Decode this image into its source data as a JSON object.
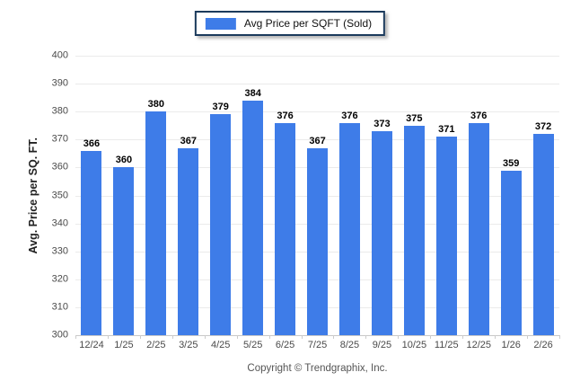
{
  "legend": {
    "label": "Avg Price per SQFT (Sold)",
    "swatch_color": "#3e7ce8"
  },
  "chart_data": {
    "type": "bar",
    "title": "",
    "series_name": "Avg Price per SQFT (Sold)",
    "categories": [
      "12/24",
      "1/25",
      "2/25",
      "3/25",
      "4/25",
      "5/25",
      "6/25",
      "7/25",
      "8/25",
      "9/25",
      "10/25",
      "11/25",
      "12/25",
      "1/26",
      "2/26"
    ],
    "values": [
      366,
      360,
      380,
      367,
      379,
      384,
      376,
      367,
      376,
      373,
      375,
      371,
      376,
      359,
      372
    ],
    "xlabel": "",
    "ylabel": "Avg. Price per SQ. FT.",
    "ylim": [
      300,
      400
    ],
    "ytick_step": 10,
    "yticks": [
      300,
      310,
      320,
      330,
      340,
      350,
      360,
      370,
      380,
      390,
      400
    ],
    "grid": "horizontal",
    "legend_position": "top-center",
    "bar_color": "#3e7ce8"
  },
  "colors": {
    "bar": "#3e7ce8",
    "gridline": "#ebebeb",
    "baseline": "#c9c9c9",
    "tick_mark": "#cccccc",
    "legend_border": "#1b3a5c"
  },
  "footer": {
    "copyright": "Copyright © Trendgraphix, Inc."
  }
}
